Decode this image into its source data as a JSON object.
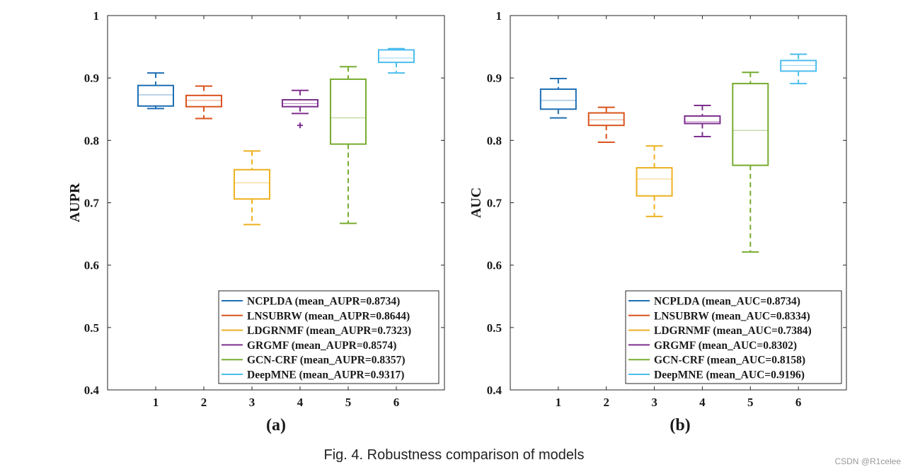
{
  "caption": "Fig. 4.  Robustness comparison of models",
  "watermark": "CSDN @R1celee",
  "colors": [
    "#1f6fb4",
    "#d9531e",
    "#edb120",
    "#7e2f8e",
    "#77ac30",
    "#4dbeee"
  ],
  "chart_data": [
    {
      "type": "box",
      "subtitle": "(a)",
      "ylabel": "AUPR",
      "xlabel": "",
      "ylim": [
        0.4,
        1.0
      ],
      "yticks": [
        "0.4",
        "0.5",
        "0.6",
        "0.7",
        "0.8",
        "0.9",
        "1"
      ],
      "categories": [
        "1",
        "2",
        "3",
        "4",
        "5",
        "6"
      ],
      "legend_position": "bottom-right",
      "series": [
        {
          "name": "NCPLDA (mean_AUPR=0.8734)",
          "min": 0.851,
          "q1": 0.855,
          "median": 0.873,
          "q3": 0.888,
          "max": 0.908,
          "outliers": []
        },
        {
          "name": "LNSUBRW (mean_AUPR=0.8644)",
          "min": 0.835,
          "q1": 0.854,
          "median": 0.864,
          "q3": 0.872,
          "max": 0.887,
          "outliers": []
        },
        {
          "name": "LDGRNMF (mean_AUPR=0.7323)",
          "min": 0.665,
          "q1": 0.706,
          "median": 0.732,
          "q3": 0.753,
          "max": 0.783,
          "outliers": []
        },
        {
          "name": "GRGMF (mean_AUPR=0.8574)",
          "min": 0.843,
          "q1": 0.854,
          "median": 0.859,
          "q3": 0.865,
          "max": 0.88,
          "outliers": [
            0.824
          ]
        },
        {
          "name": "GCN-CRF (mean_AUPR=0.8357)",
          "min": 0.667,
          "q1": 0.794,
          "median": 0.836,
          "q3": 0.898,
          "max": 0.918,
          "outliers": []
        },
        {
          "name": "DeepMNE (mean_AUPR=0.9317)",
          "min": 0.908,
          "q1": 0.925,
          "median": 0.932,
          "q3": 0.945,
          "max": 0.947,
          "outliers": []
        }
      ]
    },
    {
      "type": "box",
      "subtitle": "(b)",
      "ylabel": "AUC",
      "xlabel": "",
      "ylim": [
        0.4,
        1.0
      ],
      "yticks": [
        "0.4",
        "0.5",
        "0.6",
        "0.7",
        "0.8",
        "0.9",
        "1"
      ],
      "categories": [
        "1",
        "2",
        "3",
        "4",
        "5",
        "6"
      ],
      "legend_position": "bottom-right",
      "series": [
        {
          "name": "NCPLDA (mean_AUC=0.8734)",
          "min": 0.836,
          "q1": 0.85,
          "median": 0.864,
          "q3": 0.882,
          "max": 0.899,
          "outliers": []
        },
        {
          "name": "LNSUBRW (mean_AUC=0.8334)",
          "min": 0.797,
          "q1": 0.824,
          "median": 0.833,
          "q3": 0.844,
          "max": 0.853,
          "outliers": []
        },
        {
          "name": "LDGRNMF (mean_AUC=0.7384)",
          "min": 0.678,
          "q1": 0.711,
          "median": 0.738,
          "q3": 0.756,
          "max": 0.791,
          "outliers": []
        },
        {
          "name": "GRGMF (mean_AUC=0.8302)",
          "min": 0.806,
          "q1": 0.827,
          "median": 0.83,
          "q3": 0.839,
          "max": 0.856,
          "outliers": []
        },
        {
          "name": "GCN-CRF (mean_AUC=0.8158)",
          "min": 0.621,
          "q1": 0.76,
          "median": 0.816,
          "q3": 0.891,
          "max": 0.909,
          "outliers": []
        },
        {
          "name": "DeepMNE (mean_AUC=0.9196)",
          "min": 0.891,
          "q1": 0.911,
          "median": 0.92,
          "q3": 0.928,
          "max": 0.938,
          "outliers": []
        }
      ]
    }
  ]
}
